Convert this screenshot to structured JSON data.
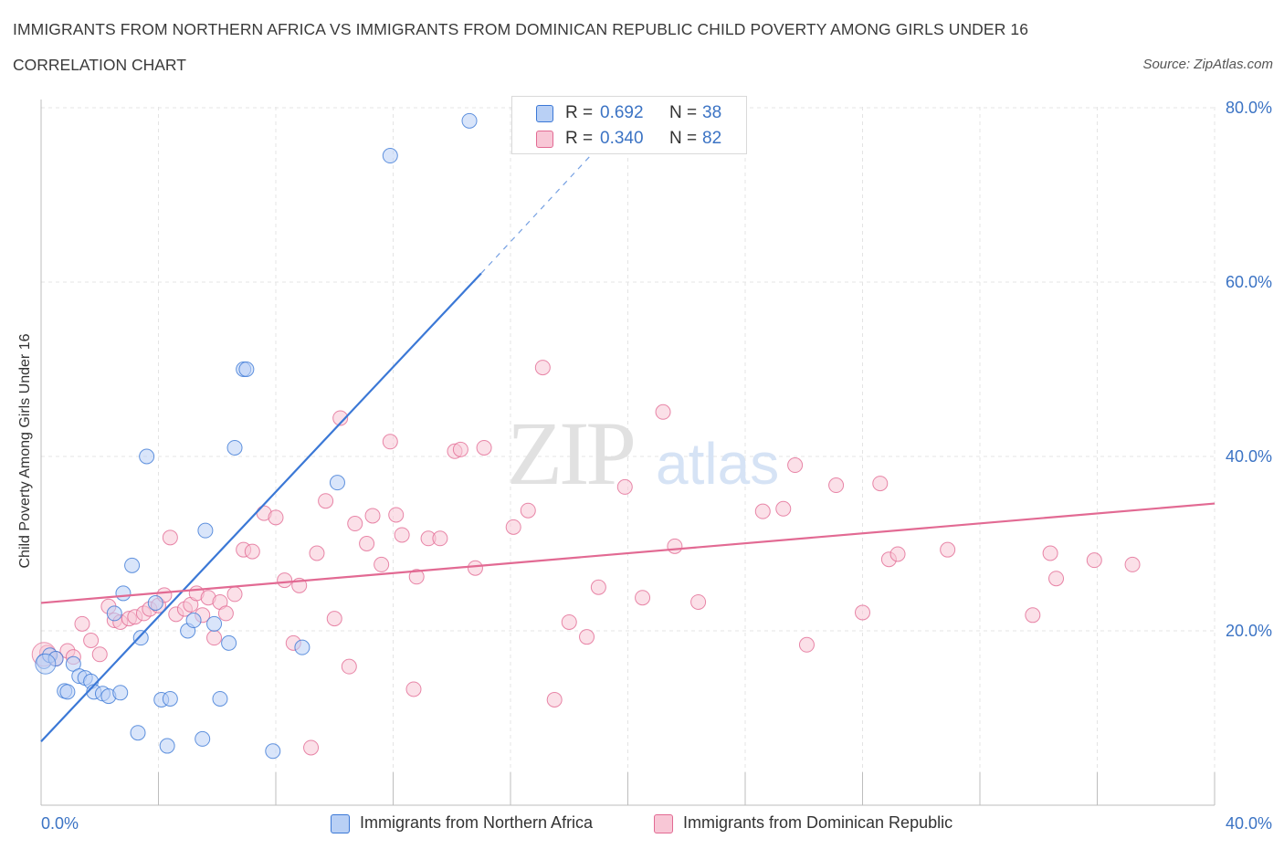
{
  "header": {
    "title": "IMMIGRANTS FROM NORTHERN AFRICA VS IMMIGRANTS FROM DOMINICAN REPUBLIC CHILD POVERTY AMONG GIRLS UNDER 16",
    "subtitle": "CORRELATION CHART",
    "source": "Source: ZipAtlas.com"
  },
  "watermark": {
    "zip": "ZIP",
    "atlas": "atlas"
  },
  "colors": {
    "blue": "#3b78d6",
    "blue_fill": "#b9d0f5",
    "pink": "#e26a93",
    "pink_fill": "#f8c7d6",
    "axis_text": "#3b73c4"
  },
  "legend_top": {
    "rows": [
      {
        "r_label": "R =",
        "r_value": "0.692",
        "n_label": "N =",
        "n_value": "38"
      },
      {
        "r_label": "R =",
        "r_value": "0.340",
        "n_label": "N =",
        "n_value": "82"
      }
    ]
  },
  "legend_bottom": [
    {
      "label": "Immigrants from Northern Africa"
    },
    {
      "label": "Immigrants from Dominican Republic"
    }
  ],
  "chart_data": {
    "type": "scatter",
    "xlabel": "",
    "ylabel": "Child Poverty Among Girls Under 16",
    "xlim": [
      0,
      40
    ],
    "ylim": [
      0,
      80
    ],
    "x_tick_labels": [
      {
        "value": 0,
        "label": "0.0%"
      },
      {
        "value": 40,
        "label": "40.0%"
      }
    ],
    "y_tick_labels": [
      {
        "value": 20,
        "label": "20.0%"
      },
      {
        "value": 40,
        "label": "40.0%"
      },
      {
        "value": 60,
        "label": "60.0%"
      },
      {
        "value": 80,
        "label": "80.0%"
      }
    ],
    "grid": true,
    "legend": "top-center",
    "series": [
      {
        "name": "Immigrants from Northern Africa",
        "color": "#3b78d6",
        "trend": {
          "x0": 0,
          "y0": 7.3,
          "x1": 15,
          "y1": 61,
          "dashed_to_x": 19,
          "dashed_to_y": 75.5
        },
        "points": [
          [
            0.1,
            16.5
          ],
          [
            0.3,
            17.2
          ],
          [
            0.5,
            16.8
          ],
          [
            0.8,
            13.1
          ],
          [
            0.9,
            13.0
          ],
          [
            1.1,
            16.2
          ],
          [
            1.3,
            14.8
          ],
          [
            1.5,
            14.6
          ],
          [
            1.7,
            14.2
          ],
          [
            1.8,
            13.0
          ],
          [
            2.1,
            12.8
          ],
          [
            2.3,
            12.5
          ],
          [
            2.7,
            12.9
          ],
          [
            2.8,
            24.3
          ],
          [
            3.1,
            27.5
          ],
          [
            3.3,
            8.3
          ],
          [
            3.4,
            19.2
          ],
          [
            3.6,
            40.0
          ],
          [
            3.9,
            23.2
          ],
          [
            4.1,
            12.1
          ],
          [
            4.4,
            12.2
          ],
          [
            4.3,
            6.8
          ],
          [
            5.0,
            20.0
          ],
          [
            5.2,
            21.2
          ],
          [
            5.5,
            7.6
          ],
          [
            5.6,
            31.5
          ],
          [
            5.9,
            20.8
          ],
          [
            6.1,
            12.2
          ],
          [
            6.4,
            18.6
          ],
          [
            6.6,
            41.0
          ],
          [
            6.9,
            50.0
          ],
          [
            7.0,
            50.0
          ],
          [
            7.9,
            6.2
          ],
          [
            8.9,
            18.1
          ],
          [
            10.1,
            37.0
          ],
          [
            11.9,
            74.5
          ],
          [
            14.6,
            78.5
          ],
          [
            2.5,
            22.0
          ]
        ]
      },
      {
        "name": "Immigrants from Dominican Republic",
        "color": "#e26a93",
        "trend": {
          "x0": 0,
          "y0": 23.2,
          "x1": 40,
          "y1": 34.6
        },
        "points": [
          [
            0.2,
            17.5
          ],
          [
            0.5,
            16.8
          ],
          [
            0.9,
            17.7
          ],
          [
            1.1,
            17.0
          ],
          [
            1.4,
            20.8
          ],
          [
            1.7,
            18.9
          ],
          [
            2.0,
            17.3
          ],
          [
            2.3,
            22.8
          ],
          [
            2.5,
            21.2
          ],
          [
            2.7,
            21.0
          ],
          [
            3.0,
            21.4
          ],
          [
            3.2,
            21.6
          ],
          [
            3.5,
            22.0
          ],
          [
            3.7,
            22.5
          ],
          [
            4.0,
            22.9
          ],
          [
            4.2,
            24.1
          ],
          [
            4.4,
            30.7
          ],
          [
            4.6,
            21.9
          ],
          [
            4.9,
            22.5
          ],
          [
            5.1,
            23.0
          ],
          [
            5.3,
            24.3
          ],
          [
            5.5,
            21.8
          ],
          [
            5.7,
            23.8
          ],
          [
            5.9,
            19.2
          ],
          [
            6.1,
            23.3
          ],
          [
            6.3,
            22.0
          ],
          [
            6.6,
            24.2
          ],
          [
            6.9,
            29.3
          ],
          [
            7.2,
            29.1
          ],
          [
            7.6,
            33.5
          ],
          [
            8.0,
            33.0
          ],
          [
            8.3,
            25.8
          ],
          [
            8.6,
            18.6
          ],
          [
            8.8,
            25.2
          ],
          [
            9.4,
            28.9
          ],
          [
            9.7,
            34.9
          ],
          [
            10.0,
            21.4
          ],
          [
            10.2,
            44.4
          ],
          [
            10.5,
            15.9
          ],
          [
            10.7,
            32.3
          ],
          [
            11.1,
            30.0
          ],
          [
            11.3,
            33.2
          ],
          [
            11.6,
            27.6
          ],
          [
            11.9,
            41.7
          ],
          [
            12.1,
            33.3
          ],
          [
            12.3,
            31.0
          ],
          [
            12.7,
            13.3
          ],
          [
            12.8,
            26.2
          ],
          [
            13.2,
            30.6
          ],
          [
            13.6,
            30.6
          ],
          [
            14.1,
            40.6
          ],
          [
            14.3,
            40.8
          ],
          [
            14.8,
            27.2
          ],
          [
            15.1,
            41.0
          ],
          [
            16.1,
            31.9
          ],
          [
            16.6,
            33.8
          ],
          [
            17.1,
            50.2
          ],
          [
            17.5,
            12.1
          ],
          [
            18.0,
            21.0
          ],
          [
            18.6,
            19.3
          ],
          [
            19.0,
            25.0
          ],
          [
            19.9,
            36.5
          ],
          [
            20.5,
            23.8
          ],
          [
            21.2,
            45.1
          ],
          [
            21.6,
            29.7
          ],
          [
            22.4,
            23.3
          ],
          [
            24.6,
            33.7
          ],
          [
            25.3,
            34.0
          ],
          [
            25.7,
            39.0
          ],
          [
            26.1,
            18.4
          ],
          [
            27.1,
            36.7
          ],
          [
            28.0,
            22.1
          ],
          [
            28.6,
            36.9
          ],
          [
            28.9,
            28.2
          ],
          [
            29.2,
            28.8
          ],
          [
            30.9,
            29.3
          ],
          [
            33.8,
            21.8
          ],
          [
            34.4,
            28.9
          ],
          [
            34.6,
            26.0
          ],
          [
            35.9,
            28.1
          ],
          [
            37.2,
            27.6
          ],
          [
            9.2,
            6.6
          ]
        ]
      }
    ]
  }
}
